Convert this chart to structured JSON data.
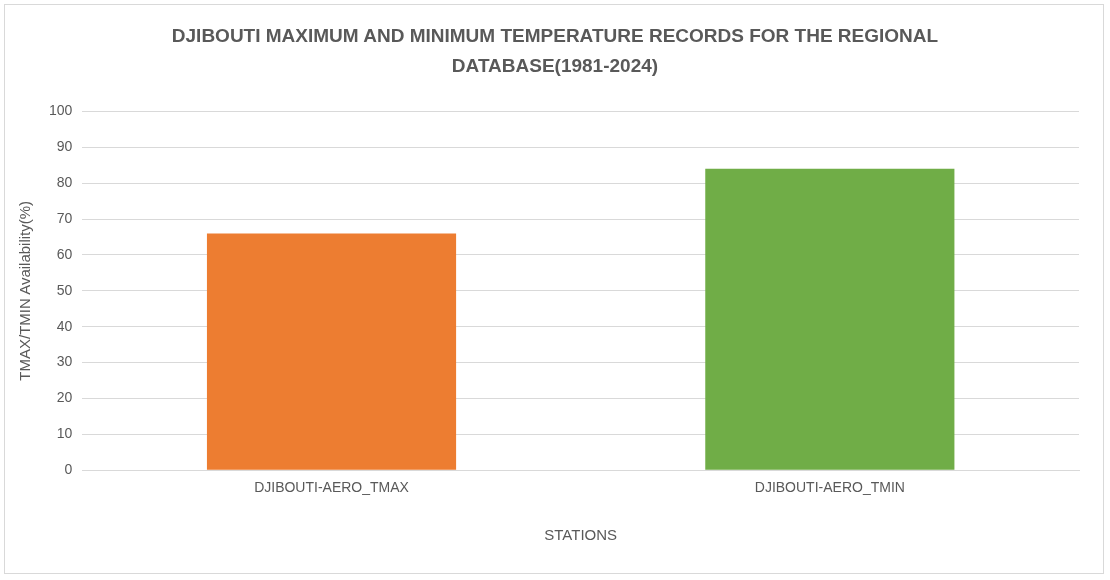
{
  "chart_data": {
    "type": "bar",
    "title": "DJIBOUTI MAXIMUM AND MINIMUM TEMPERATURE RECORDS FOR THE REGIONAL DATABASE(1981-2024)",
    "xlabel": "STATIONS",
    "ylabel": "TMAX/TMIN Availability(%)",
    "categories": [
      "DJIBOUTI-AERO_TMAX",
      "DJIBOUTI-AERO_TMIN"
    ],
    "values": [
      66,
      84
    ],
    "colors": [
      "#ed7d31",
      "#70ad47"
    ],
    "ylim": [
      0,
      100
    ],
    "yticks": [
      0,
      10,
      20,
      30,
      40,
      50,
      60,
      70,
      80,
      90,
      100
    ],
    "grid": "y",
    "legend": false
  }
}
